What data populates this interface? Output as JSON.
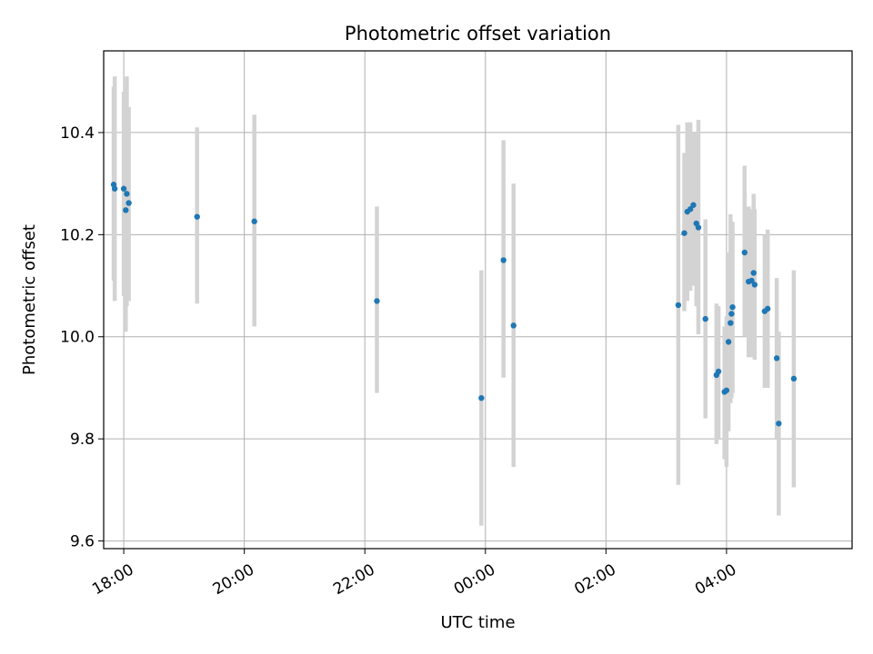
{
  "chart_data": {
    "type": "scatter",
    "title": "Photometric offset variation",
    "xlabel": "UTC time",
    "ylabel": "Photometric offset",
    "x_unit": "UTC clock time (HH:MM), spanning midnight",
    "xlim": [
      "17:40",
      "06:05"
    ],
    "ylim": [
      9.585,
      10.56
    ],
    "xticks": [
      "18:00",
      "20:00",
      "22:00",
      "00:00",
      "02:00",
      "04:00"
    ],
    "yticks": [
      9.6,
      9.8,
      10.0,
      10.2,
      10.4
    ],
    "ytick_labels": [
      "9.6",
      "9.8",
      "10.0",
      "10.2",
      "10.4"
    ],
    "grid": true,
    "colors": {
      "marker": "#1f77b4",
      "errorbar": "#d3d3d3",
      "grid": "#b0b0b0"
    },
    "series": [
      {
        "points": [
          {
            "x": "17:50",
            "y": 10.298,
            "lo": 10.11,
            "hi": 10.49
          },
          {
            "x": "17:51",
            "y": 10.29,
            "lo": 10.07,
            "hi": 10.51
          },
          {
            "x": "18:00",
            "y": 10.29,
            "lo": 10.08,
            "hi": 10.48
          },
          {
            "x": "18:02",
            "y": 10.248,
            "lo": 10.01,
            "hi": 10.49
          },
          {
            "x": "18:03",
            "y": 10.28,
            "lo": 10.06,
            "hi": 10.51
          },
          {
            "x": "18:05",
            "y": 10.262,
            "lo": 10.07,
            "hi": 10.45
          },
          {
            "x": "19:13",
            "y": 10.235,
            "lo": 10.065,
            "hi": 10.41
          },
          {
            "x": "20:10",
            "y": 10.226,
            "lo": 10.02,
            "hi": 10.435
          },
          {
            "x": "22:12",
            "y": 10.07,
            "lo": 9.89,
            "hi": 10.255
          },
          {
            "x": "23:56",
            "y": 9.88,
            "lo": 9.63,
            "hi": 10.13
          },
          {
            "x": "00:18",
            "y": 10.15,
            "lo": 9.92,
            "hi": 10.385
          },
          {
            "x": "00:28",
            "y": 10.022,
            "lo": 9.745,
            "hi": 10.3
          },
          {
            "x": "03:12",
            "y": 10.062,
            "lo": 9.71,
            "hi": 10.415
          },
          {
            "x": "03:18",
            "y": 10.203,
            "lo": 10.05,
            "hi": 10.36
          },
          {
            "x": "03:21",
            "y": 10.245,
            "lo": 10.07,
            "hi": 10.42
          },
          {
            "x": "03:24",
            "y": 10.25,
            "lo": 10.09,
            "hi": 10.42
          },
          {
            "x": "03:27",
            "y": 10.258,
            "lo": 10.1,
            "hi": 10.4
          },
          {
            "x": "03:30",
            "y": 10.222,
            "lo": 10.06,
            "hi": 10.4
          },
          {
            "x": "03:32",
            "y": 10.214,
            "lo": 10.005,
            "hi": 10.425
          },
          {
            "x": "03:39",
            "y": 10.035,
            "lo": 9.84,
            "hi": 10.23
          },
          {
            "x": "03:50",
            "y": 9.925,
            "lo": 9.79,
            "hi": 10.065
          },
          {
            "x": "03:52",
            "y": 9.932,
            "lo": 9.8,
            "hi": 10.06
          },
          {
            "x": "03:58",
            "y": 9.892,
            "lo": 9.76,
            "hi": 10.02
          },
          {
            "x": "04:00",
            "y": 9.895,
            "lo": 9.745,
            "hi": 10.04
          },
          {
            "x": "04:02",
            "y": 9.99,
            "lo": 9.815,
            "hi": 10.165
          },
          {
            "x": "04:04",
            "y": 10.027,
            "lo": 9.87,
            "hi": 10.24
          },
          {
            "x": "04:05",
            "y": 10.045,
            "lo": 9.88,
            "hi": 10.2
          },
          {
            "x": "04:06",
            "y": 10.058,
            "lo": 9.89,
            "hi": 10.225
          },
          {
            "x": "04:18",
            "y": 10.165,
            "lo": 10.0,
            "hi": 10.335
          },
          {
            "x": "04:22",
            "y": 10.108,
            "lo": 9.96,
            "hi": 10.255
          },
          {
            "x": "04:25",
            "y": 10.11,
            "lo": 9.96,
            "hi": 10.25
          },
          {
            "x": "04:27",
            "y": 10.125,
            "lo": 9.97,
            "hi": 10.28
          },
          {
            "x": "04:28",
            "y": 10.102,
            "lo": 9.955,
            "hi": 10.25
          },
          {
            "x": "04:38",
            "y": 10.05,
            "lo": 9.9,
            "hi": 10.2
          },
          {
            "x": "04:41",
            "y": 10.055,
            "lo": 9.9,
            "hi": 10.21
          },
          {
            "x": "04:50",
            "y": 9.958,
            "lo": 9.8,
            "hi": 10.115
          },
          {
            "x": "04:52",
            "y": 9.83,
            "lo": 9.65,
            "hi": 10.01
          },
          {
            "x": "05:07",
            "y": 9.918,
            "lo": 9.705,
            "hi": 10.13
          }
        ]
      }
    ]
  }
}
